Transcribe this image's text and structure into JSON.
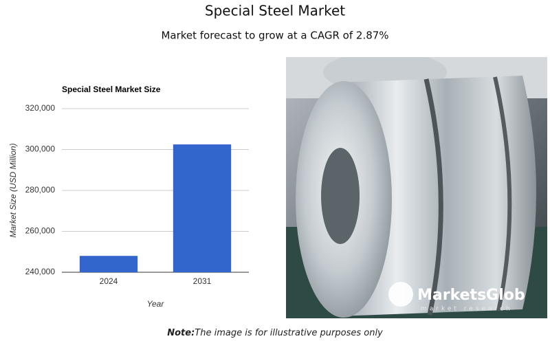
{
  "header": {
    "title": "Special Steel Market",
    "subtitle": "Market forecast to grow at a CAGR of 2.87%"
  },
  "chart_data": {
    "type": "bar",
    "title": "Special Steel Market Size",
    "x_label": "Year",
    "y_label": "Market Size (USD Million)",
    "categories": [
      "2024",
      "2031"
    ],
    "values": [
      248000,
      302500
    ],
    "color": "#3366cc",
    "ylim": [
      240000,
      320000
    ],
    "yticks": [
      {
        "value": 240000,
        "label": "240,000"
      },
      {
        "value": 260000,
        "label": "260,000"
      },
      {
        "value": 280000,
        "label": "280,000"
      },
      {
        "value": 300000,
        "label": "300,000"
      },
      {
        "value": 320000,
        "label": "320,000"
      }
    ],
    "grid": true
  },
  "image": {
    "logo": "MarketsGlob",
    "logo_sub": "market research"
  },
  "note": {
    "label": "Note:",
    "text": "The image is for illustrative purposes only"
  }
}
